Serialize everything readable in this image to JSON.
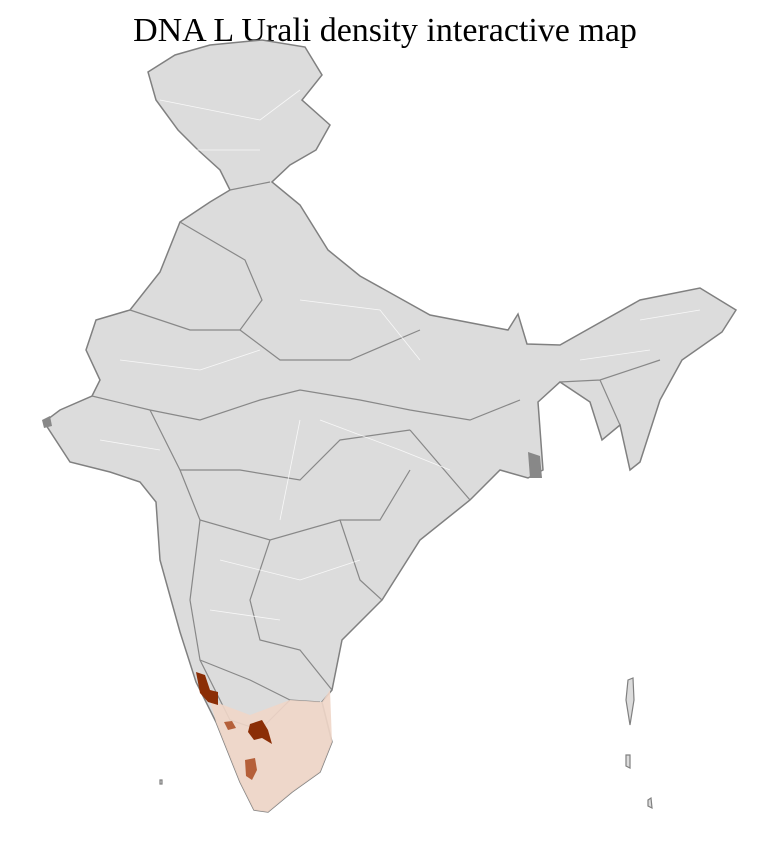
{
  "title": "DNA L Urali density interactive map",
  "colors": {
    "background_region": "#dcdcdc",
    "state_border": "#808080",
    "district_border": "#ffffff",
    "high_density": "#8b2e06",
    "medium_density": "#b5603a",
    "low_density": "#f0d6c8"
  }
}
